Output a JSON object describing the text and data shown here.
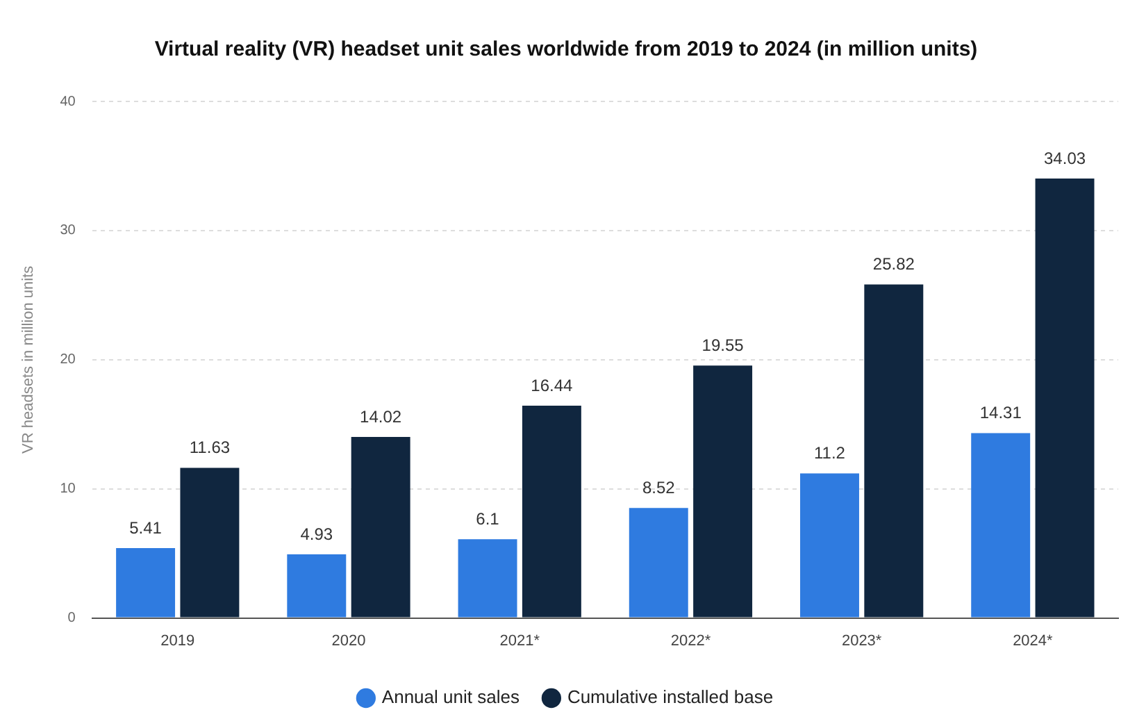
{
  "chart_data": {
    "type": "bar",
    "title": "Virtual reality (VR) headset unit sales worldwide from 2019 to 2024 (in million units)",
    "ylabel": "VR headsets in million units",
    "categories": [
      "2019",
      "2020",
      "2021*",
      "2022*",
      "2023*",
      "2024*"
    ],
    "series": [
      {
        "name": "Annual unit sales",
        "color": "#2f7be0",
        "values": [
          5.41,
          4.93,
          6.1,
          8.52,
          11.2,
          14.31
        ]
      },
      {
        "name": "Cumulative installed base",
        "color": "#10263f",
        "values": [
          11.63,
          14.02,
          16.44,
          19.55,
          25.82,
          34.03
        ]
      }
    ],
    "ylim": [
      0,
      40
    ],
    "yticks": [
      0,
      10,
      20,
      30,
      40
    ],
    "grid": "y",
    "legend": "bottom",
    "data_labels": true
  }
}
